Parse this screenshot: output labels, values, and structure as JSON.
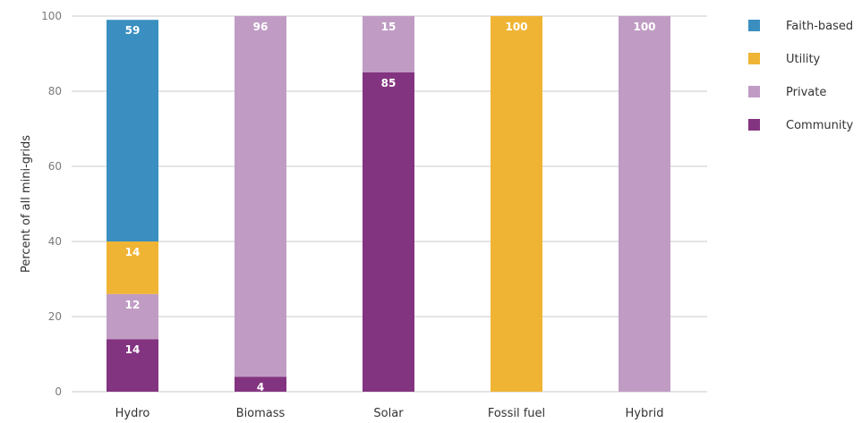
{
  "chart_data": {
    "type": "bar",
    "stacked": true,
    "ylabel": "Percent of all mini-grids",
    "xlabel": "",
    "ylim": [
      0,
      100
    ],
    "yticks": [
      0,
      20,
      40,
      60,
      80,
      100
    ],
    "grid": true,
    "legend_position": "right",
    "categories": [
      "Hydro",
      "Biomass",
      "Solar",
      "Fossil fuel",
      "Hybrid"
    ],
    "series": [
      {
        "name": "Community",
        "color": "#833480",
        "values": [
          14,
          4,
          85,
          0,
          0
        ]
      },
      {
        "name": "Private",
        "color": "#c09cc4",
        "values": [
          12,
          96,
          15,
          0,
          100
        ]
      },
      {
        "name": "Utility",
        "color": "#f0b434",
        "values": [
          14,
          0,
          0,
          100,
          0
        ]
      },
      {
        "name": "Faith-based",
        "color": "#3a8fc0",
        "values": [
          59,
          0,
          0,
          0,
          0
        ]
      }
    ],
    "legend_order": [
      "Faith-based",
      "Utility",
      "Private",
      "Community"
    ]
  }
}
